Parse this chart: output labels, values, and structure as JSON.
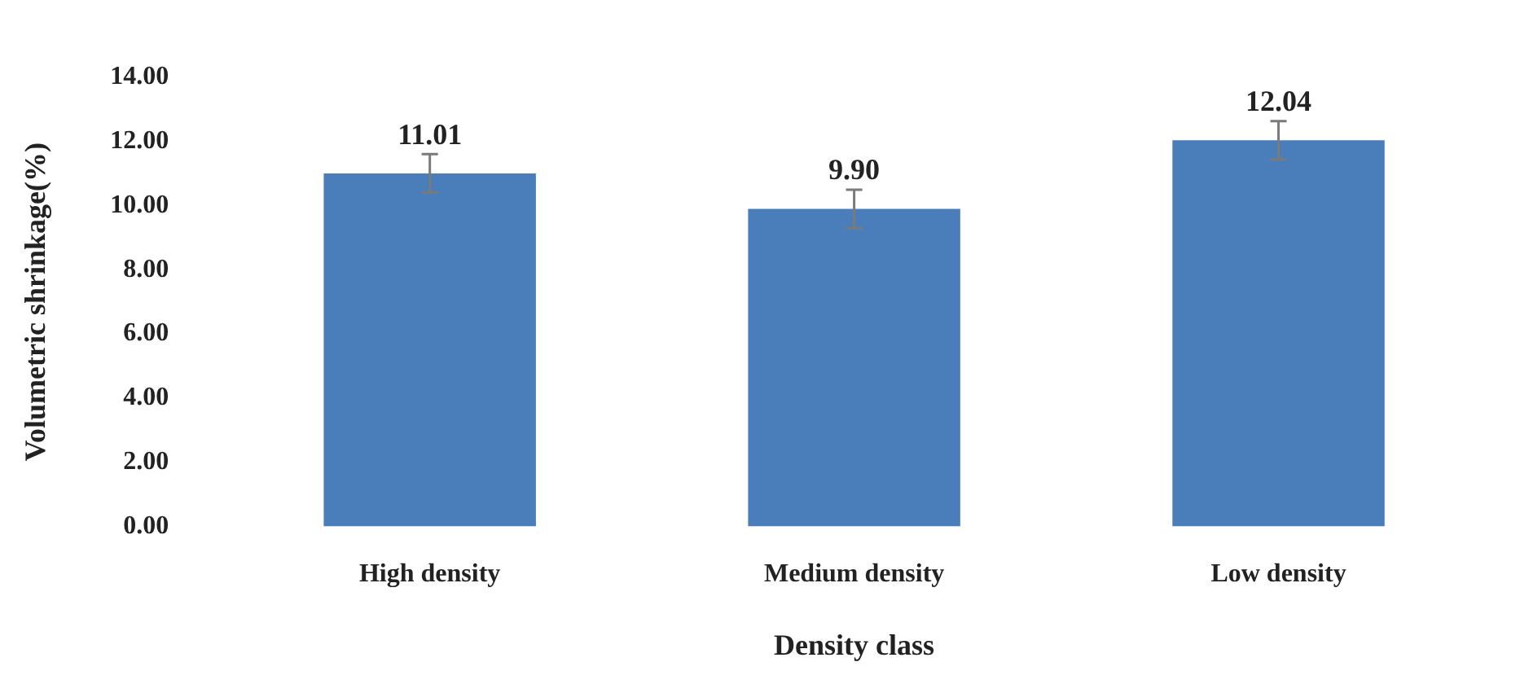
{
  "chart_data": {
    "type": "bar",
    "xlabel": "Density class",
    "ylabel": "Volumetric shrinkage(%)",
    "categories": [
      "High density",
      "Medium density",
      "Low density"
    ],
    "values": [
      11.01,
      9.9,
      12.04
    ],
    "value_labels": [
      "11.01",
      "9.90",
      "12.04"
    ],
    "errors": [
      0.6,
      0.6,
      0.6
    ],
    "color": "#4a7ebb",
    "ylim": [
      0,
      14
    ],
    "yticks": [
      {
        "value": 0,
        "label": "0.00"
      },
      {
        "value": 2,
        "label": "2.00"
      },
      {
        "value": 4,
        "label": "4.00"
      },
      {
        "value": 6,
        "label": "6.00"
      },
      {
        "value": 8,
        "label": "8.00"
      },
      {
        "value": 10,
        "label": "10.00"
      },
      {
        "value": 12,
        "label": "12.00"
      },
      {
        "value": 14,
        "label": "14.00"
      }
    ],
    "grid": false,
    "legend": false
  }
}
